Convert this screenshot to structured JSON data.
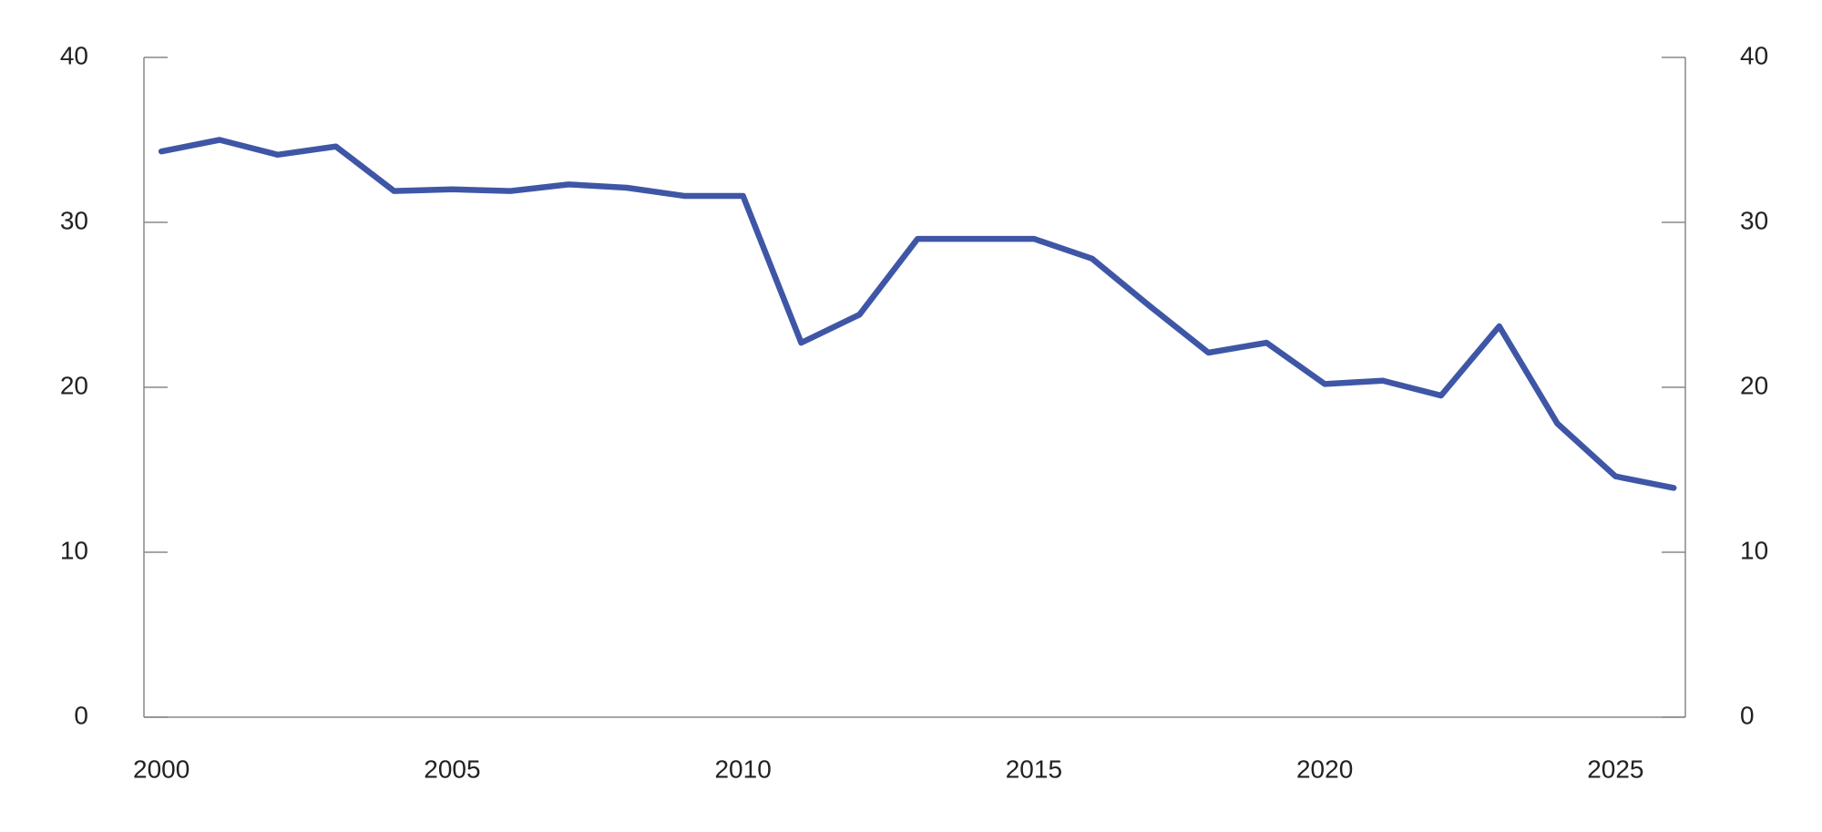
{
  "chart_data": {
    "type": "line",
    "x": [
      2000,
      2001,
      2002,
      2003,
      2004,
      2005,
      2006,
      2007,
      2008,
      2009,
      2010,
      2011,
      2012,
      2013,
      2014,
      2015,
      2016,
      2017,
      2018,
      2019,
      2020,
      2021,
      2022,
      2023,
      2024,
      2025,
      2026
    ],
    "series": [
      {
        "color": "#3f56a6",
        "values": [
          34.3,
          35.0,
          34.1,
          34.6,
          31.9,
          32.0,
          31.9,
          32.3,
          32.1,
          31.6,
          31.6,
          22.7,
          24.4,
          29.0,
          29.0,
          29.0,
          27.8,
          24.9,
          22.1,
          22.7,
          20.2,
          20.4,
          19.5,
          23.7,
          17.8,
          14.6,
          13.9
        ]
      }
    ],
    "xlim": [
      1999.7,
      2026.2
    ],
    "xticks": [
      2000,
      2005,
      2010,
      2015,
      2020,
      2025
    ],
    "ylim": [
      0,
      40
    ],
    "yticks": [
      0,
      10,
      20,
      30,
      40
    ],
    "y2lim": [
      0,
      40
    ],
    "y2ticks": [
      0,
      10,
      20,
      30,
      40
    ]
  }
}
